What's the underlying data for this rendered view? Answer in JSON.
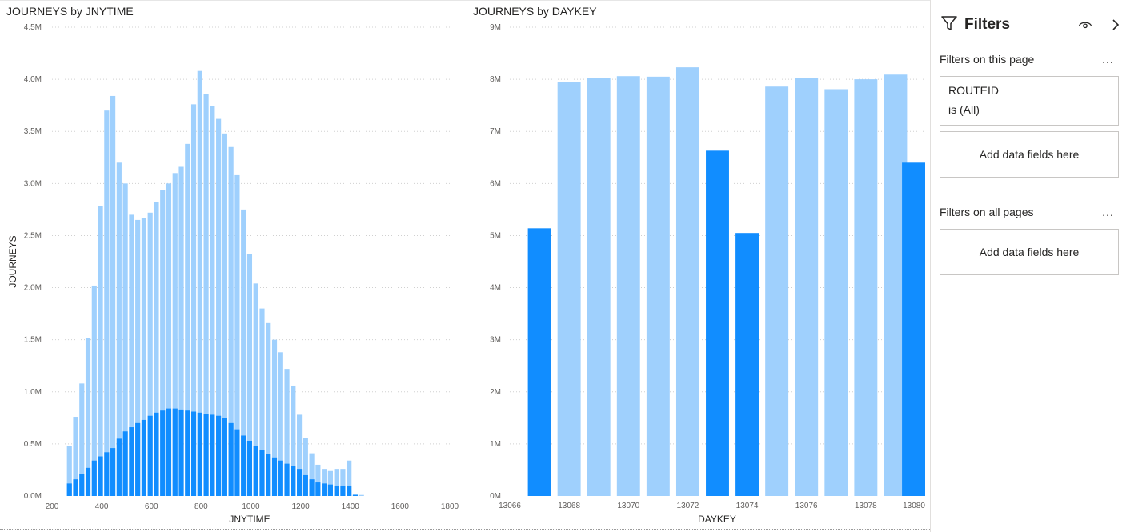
{
  "colors": {
    "light": "#9fd0fd",
    "dark": "#118dff",
    "grid": "#d0d0d0"
  },
  "charts": [
    {
      "title": "JOURNEYS by JNYTIME",
      "xlabel": "JNYTIME",
      "ylabel": "JOURNEYS"
    },
    {
      "title": "JOURNEYS by DAYKEY",
      "xlabel": "DAYKEY",
      "ylabel": "JOURNEYS"
    }
  ],
  "chart_data": [
    {
      "type": "bar",
      "stacked": false,
      "title": "JOURNEYS by JNYTIME",
      "xlabel": "JNYTIME",
      "ylabel": "JOURNEYS",
      "xlim": [
        200,
        1800
      ],
      "ylim": [
        0,
        4.5
      ],
      "x_ticks": [
        "200",
        "400",
        "600",
        "800",
        "1000",
        "1200",
        "1400",
        "1600",
        "1800"
      ],
      "y_ticks": [
        "0.0M",
        "0.5M",
        "1.0M",
        "1.5M",
        "2.0M",
        "2.5M",
        "3.0M",
        "3.5M",
        "4.0M",
        "4.5M"
      ],
      "bin_start": 270,
      "bin_width": 25,
      "series": [
        {
          "values": [
            0.48,
            0.76,
            1.08,
            1.52,
            2.02,
            2.78,
            3.7,
            3.84,
            3.2,
            3.0,
            2.7,
            2.65,
            2.67,
            2.72,
            2.82,
            2.94,
            3.0,
            3.1,
            3.16,
            3.38,
            3.76,
            4.08,
            3.86,
            3.74,
            3.62,
            3.48,
            3.35,
            3.08,
            2.75,
            2.32,
            2.04,
            1.8,
            1.66,
            1.5,
            1.38,
            1.22,
            1.06,
            0.78,
            0.56,
            0.41,
            0.3,
            0.26,
            0.24,
            0.26,
            0.26,
            0.34,
            0.02,
            0.01
          ]
        },
        {
          "values": [
            0.12,
            0.16,
            0.21,
            0.27,
            0.34,
            0.38,
            0.42,
            0.46,
            0.55,
            0.62,
            0.66,
            0.7,
            0.73,
            0.77,
            0.8,
            0.82,
            0.84,
            0.84,
            0.83,
            0.82,
            0.81,
            0.8,
            0.79,
            0.78,
            0.77,
            0.75,
            0.7,
            0.64,
            0.58,
            0.53,
            0.48,
            0.44,
            0.4,
            0.37,
            0.34,
            0.31,
            0.29,
            0.26,
            0.2,
            0.16,
            0.13,
            0.12,
            0.11,
            0.1,
            0.1,
            0.1,
            0.01,
            0.0
          ]
        }
      ]
    },
    {
      "type": "bar",
      "title": "JOURNEYS by DAYKEY",
      "xlabel": "DAYKEY",
      "ylabel": "JOURNEYS",
      "xlim": [
        13066,
        13080
      ],
      "ylim": [
        0,
        9
      ],
      "x_ticks": [
        "13066",
        "13068",
        "13070",
        "13072",
        "13074",
        "13076",
        "13078",
        "13080"
      ],
      "y_ticks": [
        "0M",
        "1M",
        "2M",
        "3M",
        "4M",
        "5M",
        "6M",
        "7M",
        "8M",
        "9M"
      ],
      "x": [
        13067,
        13068,
        13069,
        13070,
        13071,
        13072,
        13073,
        13074,
        13075,
        13076,
        13077,
        13078,
        13079,
        13080
      ],
      "values": [
        5.14,
        7.94,
        8.03,
        8.06,
        8.05,
        8.23,
        6.63,
        5.05,
        7.86,
        8.03,
        7.81,
        8.0,
        8.09,
        6.4
      ],
      "highlight": [
        true,
        false,
        false,
        false,
        false,
        false,
        true,
        true,
        false,
        false,
        false,
        false,
        false,
        true
      ]
    }
  ],
  "filters": {
    "title": "Filters",
    "on_this_page": "Filters on this page",
    "more": "...",
    "filter_card": {
      "field": "ROUTEID",
      "condition": "is (All)"
    },
    "add_fields": "Add data fields here",
    "on_all_pages": "Filters on all pages"
  }
}
